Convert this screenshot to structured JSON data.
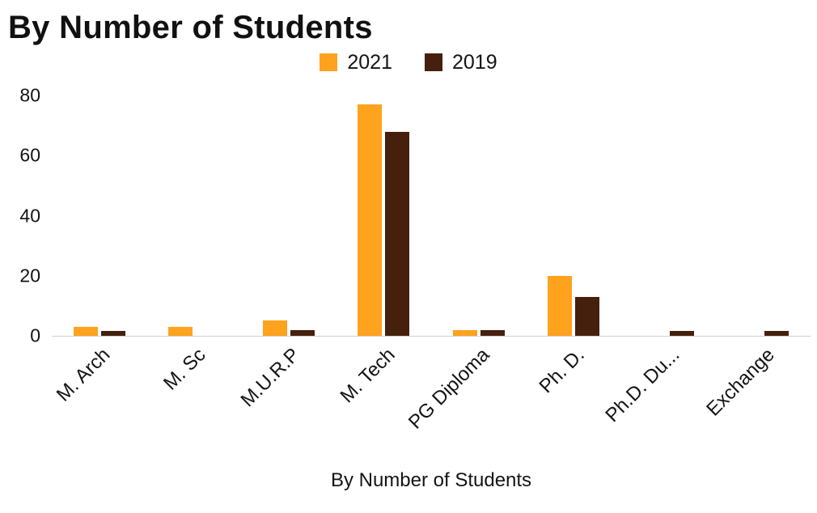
{
  "title": "By Number of Students",
  "chart_data": {
    "type": "bar",
    "title": "By Number of Students",
    "xlabel": "By Number of Students",
    "ylabel": "",
    "categories": [
      "M. Arch",
      "M. Sc",
      "M.U.R.P",
      "M. Tech",
      "PG Diploma",
      "Ph. D.",
      "Ph.D. Du...",
      "Exchange"
    ],
    "series": [
      {
        "name": "2021",
        "color": "#FFA21D",
        "values": [
          3,
          3,
          5,
          77,
          2,
          20,
          0,
          0
        ]
      },
      {
        "name": "2019",
        "color": "#45200D",
        "values": [
          1.5,
          0,
          2,
          68,
          2,
          13,
          1.5,
          1.5
        ]
      }
    ],
    "ylim": [
      0,
      80
    ],
    "yticks": [
      0,
      20,
      40,
      60,
      80
    ],
    "grid": false,
    "legend_position": "top",
    "colors": {
      "series_2021": "#FFA21D",
      "series_2019": "#45200D",
      "axis_line": "#cfcfcf",
      "text": "#141414"
    }
  }
}
